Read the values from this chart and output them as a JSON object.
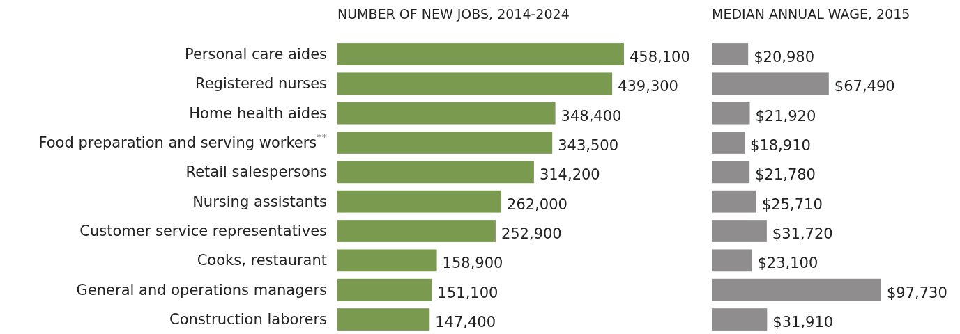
{
  "chart_data": [
    {
      "type": "bar",
      "orientation": "horizontal",
      "title": "NUMBER OF NEW JOBS, 2014-2024",
      "categories": [
        "Personal care aides",
        "Registered nurses",
        "Home health aides",
        "Food preparation and serving workers$^{**}$",
        "Retail salespersons",
        "Nursing assistants",
        "Customer service representatives",
        "Cooks, restaurant",
        "General and operations managers",
        "Construction laborers"
      ],
      "values": [
        458100,
        439300,
        348400,
        343500,
        314200,
        262000,
        252900,
        158900,
        151100,
        147400
      ],
      "color": "#7a9a4f",
      "value_labels": [
        "458,100",
        "439,300",
        "348,400",
        "343,500",
        "314,200",
        "262,000",
        "252,900",
        "158,900",
        "151,100",
        "147,400"
      ]
    },
    {
      "type": "bar",
      "orientation": "horizontal",
      "title": "MEDIAN ANNUAL WAGE, 2015",
      "categories": [
        null,
        null,
        null,
        null,
        null,
        null,
        null,
        null,
        null,
        null
      ],
      "values": [
        20980,
        67490,
        21920,
        18910,
        21780,
        25710,
        31720,
        23100,
        97730,
        31910
      ],
      "color": "#8f8d8e",
      "value_labels": [
        "$20,980",
        "$67,490",
        "$21,920",
        "$18,910",
        "$21,780",
        "$25,710",
        "$31,720",
        "$23,100",
        "$97,730",
        "$31,910"
      ]
    }
  ]
}
